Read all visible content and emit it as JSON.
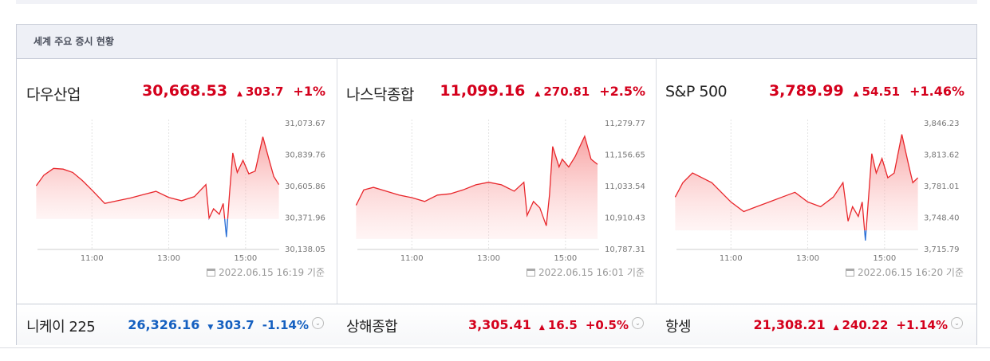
{
  "header": {
    "title": "세계 주요 증시 현황"
  },
  "panels": [
    {
      "name": "다우산업",
      "price": "30,668.53",
      "change": "303.7",
      "percent": "+1%",
      "direction": "up",
      "updated": "2022.06.15 16:19 기준",
      "chart": {
        "type": "line",
        "x": [
          "09:33",
          "09:45",
          "10:00",
          "10:15",
          "10:30",
          "10:45",
          "11:00",
          "11:20",
          "11:40",
          "12:00",
          "12:20",
          "12:40",
          "13:00",
          "13:20",
          "13:40",
          "13:58",
          "14:03",
          "14:10",
          "14:19",
          "14:25",
          "14:30",
          "14:35",
          "14:40",
          "14:47",
          "14:56",
          "15:05",
          "15:15",
          "15:27",
          "15:37",
          "15:44",
          "15:52"
        ],
        "values": [
          30611,
          30690,
          30740,
          30735,
          30710,
          30650,
          30580,
          30480,
          30500,
          30520,
          30545,
          30570,
          30525,
          30500,
          30530,
          30620,
          30370,
          30440,
          30400,
          30480,
          30230,
          30560,
          30855,
          30710,
          30800,
          30700,
          30720,
          30975,
          30800,
          30680,
          30620
        ],
        "xlim": [
          "09:30",
          "16:00"
        ],
        "xticks": [
          "11:00",
          "13:00",
          "15:00"
        ],
        "ylim": [
          30138.05,
          31073.67
        ],
        "yticks": [
          {
            "value": 30138.05,
            "label": "30,138.05"
          },
          {
            "value": 30371.96,
            "label": "30,371.96"
          },
          {
            "value": 30605.86,
            "label": "30,605.86"
          },
          {
            "value": 30839.76,
            "label": "30,839.76"
          },
          {
            "value": 31073.67,
            "label": "31,073.67"
          }
        ]
      }
    },
    {
      "name": "나스닥종합",
      "price": "11,099.16",
      "change": "270.81",
      "percent": "+2.5%",
      "direction": "up",
      "updated": "2022.06.15 16:01 기준",
      "chart": {
        "type": "line",
        "x": [
          "09:33",
          "09:45",
          "10:00",
          "10:20",
          "10:40",
          "11:00",
          "11:20",
          "11:40",
          "12:00",
          "12:20",
          "12:40",
          "13:00",
          "13:20",
          "13:40",
          "13:55",
          "14:00",
          "14:10",
          "14:20",
          "14:30",
          "14:35",
          "14:40",
          "14:50",
          "14:55",
          "15:05",
          "15:15",
          "15:30",
          "15:40",
          "15:50"
        ],
        "values": [
          10960,
          11020,
          11030,
          11015,
          11000,
          10990,
          10975,
          11000,
          11005,
          11020,
          11040,
          11050,
          11040,
          11015,
          11050,
          10920,
          10975,
          10950,
          10880,
          11000,
          11190,
          11110,
          11140,
          11110,
          11150,
          11230,
          11140,
          11120
        ],
        "xlim": [
          "09:30",
          "16:00"
        ],
        "xticks": [
          "11:00",
          "13:00",
          "15:00"
        ],
        "ylim": [
          10787.31,
          11279.77
        ],
        "yticks": [
          {
            "value": 10787.31,
            "label": "10,787.31"
          },
          {
            "value": 10910.43,
            "label": "10,910.43"
          },
          {
            "value": 11033.54,
            "label": "11,033.54"
          },
          {
            "value": 11156.65,
            "label": "11,156.65"
          },
          {
            "value": 11279.77,
            "label": "11,279.77"
          }
        ]
      }
    },
    {
      "name": "S&P 500",
      "price": "3,789.99",
      "change": "54.51",
      "percent": "+1.46%",
      "direction": "up",
      "updated": "2022.06.15 16:20 기준",
      "chart": {
        "type": "line",
        "x": [
          "09:33",
          "09:45",
          "10:00",
          "10:15",
          "10:30",
          "10:45",
          "11:00",
          "11:20",
          "11:40",
          "12:00",
          "12:20",
          "12:40",
          "13:00",
          "13:20",
          "13:40",
          "13:55",
          "14:03",
          "14:10",
          "14:19",
          "14:25",
          "14:30",
          "14:35",
          "14:40",
          "14:47",
          "14:56",
          "15:05",
          "15:15",
          "15:27",
          "15:37",
          "15:44",
          "15:52"
        ],
        "values": [
          3770,
          3785,
          3795,
          3790,
          3785,
          3775,
          3765,
          3755,
          3760,
          3765,
          3770,
          3775,
          3765,
          3760,
          3770,
          3785,
          3745,
          3760,
          3750,
          3765,
          3725,
          3770,
          3815,
          3795,
          3810,
          3790,
          3795,
          3835,
          3805,
          3785,
          3790
        ],
        "xlim": [
          "09:30",
          "16:00"
        ],
        "xticks": [
          "11:00",
          "13:00",
          "15:00"
        ],
        "ylim": [
          3715.79,
          3846.23
        ],
        "yticks": [
          {
            "value": 3715.79,
            "label": "3,715.79"
          },
          {
            "value": 3748.4,
            "label": "3,748.40"
          },
          {
            "value": 3781.01,
            "label": "3,781.01"
          },
          {
            "value": 3813.62,
            "label": "3,813.62"
          },
          {
            "value": 3846.23,
            "label": "3,846.23"
          }
        ]
      }
    }
  ],
  "others": [
    {
      "name": "니케이 225",
      "price": "26,326.16",
      "change": "303.7",
      "percent": "-1.14%",
      "direction": "down"
    },
    {
      "name": "상해종합",
      "price": "3,305.41",
      "change": "16.5",
      "percent": "+0.5%",
      "direction": "up"
    },
    {
      "name": "항셍",
      "price": "21,308.21",
      "change": "240.22",
      "percent": "+1.14%",
      "direction": "up"
    }
  ]
}
